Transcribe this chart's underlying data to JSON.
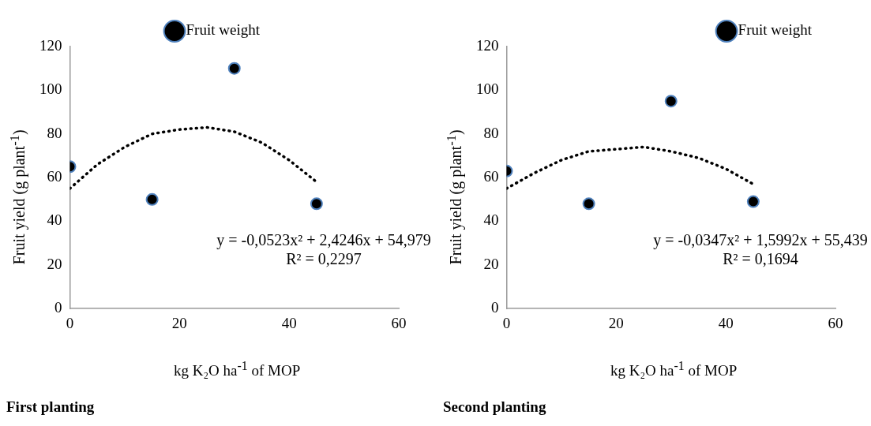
{
  "chart_data": [
    {
      "type": "scatter",
      "title": "First planting",
      "xlabel": "kg K₂O ha$^{-1}$ of MOP",
      "ylabel": "Fruit yield (g plant$^{-1}$)",
      "x": [
        0,
        15,
        30,
        45
      ],
      "xlim": [
        0,
        60
      ],
      "xticks": [
        0,
        20,
        40,
        60
      ],
      "ylim": [
        0,
        120
      ],
      "yticks": [
        0,
        20,
        40,
        60,
        80,
        100,
        120
      ],
      "grid": false,
      "legend": "top",
      "marker": "circle",
      "series": [
        {
          "name": "Fruit weight",
          "color": "#000000",
          "values": [
            65,
            50,
            110,
            48
          ]
        },
        {
          "type": "line",
          "color": "#000000",
          "line_style": "dotted",
          "marker": "none",
          "x": [
            0,
            5,
            10,
            15,
            20,
            25,
            30,
            35,
            40,
            45
          ],
          "values": [
            55,
            66,
            74,
            80,
            82,
            83,
            81,
            76,
            68,
            58
          ]
        }
      ],
      "annotations": [
        "y = -0,0523x² + 2,4246x + 54,979",
        "R² = 0,2297"
      ]
    },
    {
      "type": "scatter",
      "title": "Second planting",
      "xlabel": "kg K₂O ha$^{-1}$ of MOP",
      "ylabel": "Fruit yield (g plant$^{-1}$)",
      "x": [
        0,
        15,
        30,
        45
      ],
      "xlim": [
        0,
        60
      ],
      "xticks": [
        0,
        20,
        40,
        60
      ],
      "ylim": [
        0,
        120
      ],
      "yticks": [
        0,
        20,
        40,
        60,
        80,
        100,
        120
      ],
      "grid": false,
      "legend": "top right",
      "marker": "circle",
      "series": [
        {
          "name": "Fruit weight",
          "color": "#000000",
          "values": [
            63,
            48,
            95,
            49
          ]
        },
        {
          "type": "line",
          "color": "#000000",
          "line_style": "dotted",
          "marker": "none",
          "x": [
            0,
            5,
            10,
            15,
            20,
            25,
            30,
            35,
            40,
            45
          ],
          "values": [
            55,
            62,
            68,
            72,
            73,
            74,
            72,
            69,
            64,
            57
          ]
        }
      ],
      "annotations": [
        "y = -0,0347x² + 1,5992x + 55,439",
        "R² = 0,1694"
      ]
    }
  ]
}
